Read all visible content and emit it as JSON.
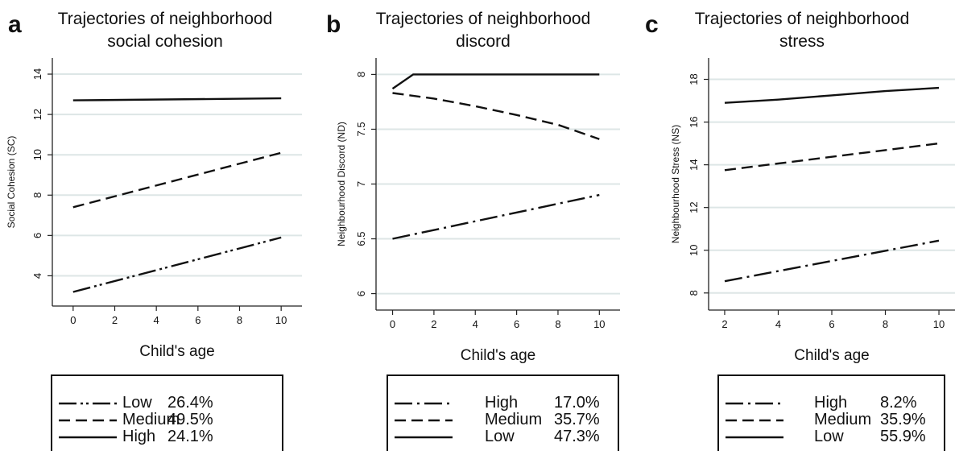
{
  "chart_data": [
    {
      "letter": "a",
      "type": "line",
      "title": "Trajectories of neighborhood social cohesion",
      "title_lines": [
        "Trajectories of neighborhood",
        "social cohesion"
      ],
      "xlabel": "Child's age",
      "ylabel": "Social Cohesion (SC)",
      "xlim": [
        -1,
        11
      ],
      "ylim": [
        2.5,
        14.8
      ],
      "xticks": [
        0,
        2,
        4,
        6,
        8,
        10
      ],
      "yticks": [
        4,
        6,
        8,
        10,
        12,
        14
      ],
      "grid": true,
      "series": [
        {
          "name": "High",
          "pct": "24.1%",
          "dash": "solid",
          "x": [
            0,
            10
          ],
          "y": [
            12.7,
            12.8
          ]
        },
        {
          "name": "Medium",
          "pct": "49.5%",
          "dash": "dash",
          "x": [
            0,
            10
          ],
          "y": [
            7.4,
            10.1
          ]
        },
        {
          "name": "Low",
          "pct": "26.4%",
          "dash": "dashdotdot",
          "x": [
            0,
            10
          ],
          "y": [
            3.2,
            5.9
          ]
        }
      ],
      "legend": [
        {
          "label": "Low",
          "pct": "26.4%",
          "dash": "dashdotdot"
        },
        {
          "label": "Medium",
          "pct": "49.5%",
          "dash": "dash"
        },
        {
          "label": "High",
          "pct": "24.1%",
          "dash": "solid"
        }
      ]
    },
    {
      "letter": "b",
      "type": "line",
      "title": "Trajectories of neighborhood discord",
      "title_lines": [
        "Trajectories of neighborhood",
        "discord"
      ],
      "xlabel": "Child's age",
      "ylabel": "Neighbourhood Discord (ND)",
      "xlim": [
        -0.8,
        11
      ],
      "ylim": [
        5.85,
        8.15
      ],
      "xticks": [
        0,
        2,
        4,
        6,
        8,
        10
      ],
      "yticks": [
        6,
        6.5,
        7,
        7.5,
        8
      ],
      "grid": true,
      "series": [
        {
          "name": "High",
          "pct": "17.0%",
          "dash": "dashdot",
          "x": [
            0,
            10
          ],
          "y": [
            6.5,
            6.9
          ]
        },
        {
          "name": "Medium",
          "pct": "35.7%",
          "dash": "dash",
          "x": [
            0,
            2,
            4,
            6,
            8,
            10
          ],
          "y": [
            7.83,
            7.78,
            7.71,
            7.63,
            7.54,
            7.41
          ]
        },
        {
          "name": "Low",
          "pct": "47.3%",
          "dash": "solid",
          "x": [
            0,
            1,
            10
          ],
          "y": [
            7.87,
            8.0,
            8.0
          ]
        }
      ],
      "legend": [
        {
          "label": "High",
          "pct": "17.0%",
          "dash": "dashdot"
        },
        {
          "label": "Medium",
          "pct": "35.7%",
          "dash": "dash"
        },
        {
          "label": "Low",
          "pct": "47.3%",
          "dash": "solid"
        }
      ]
    },
    {
      "letter": "c",
      "type": "line",
      "title": "Trajectories of neighborhood stress",
      "title_lines": [
        "Trajectories of neighborhood",
        "stress"
      ],
      "xlabel": "Child's age",
      "ylabel": "Neighbourhood Stress (NS)",
      "xlim": [
        1.4,
        10.6
      ],
      "ylim": [
        7.2,
        19.0
      ],
      "xticks": [
        2,
        4,
        6,
        8,
        10
      ],
      "yticks": [
        8,
        10,
        12,
        14,
        16,
        18
      ],
      "grid": true,
      "series": [
        {
          "name": "Low",
          "pct": "55.9%",
          "dash": "solid",
          "x": [
            2,
            4,
            6,
            8,
            10
          ],
          "y": [
            16.9,
            17.05,
            17.25,
            17.45,
            17.6
          ]
        },
        {
          "name": "Medium",
          "pct": "35.9%",
          "dash": "dash",
          "x": [
            2,
            10
          ],
          "y": [
            13.75,
            15.0
          ]
        },
        {
          "name": "High",
          "pct": "8.2%",
          "dash": "dashdot",
          "x": [
            2,
            10
          ],
          "y": [
            8.55,
            10.45
          ]
        }
      ],
      "legend": [
        {
          "label": "High",
          "pct": "8.2%",
          "dash": "dashdot"
        },
        {
          "label": "Medium",
          "pct": "35.9%",
          "dash": "dash"
        },
        {
          "label": "Low",
          "pct": "55.9%",
          "dash": "solid"
        }
      ]
    }
  ],
  "colors": {
    "line": "#111111",
    "grid": "#dde6e6",
    "axis": "#222222"
  }
}
